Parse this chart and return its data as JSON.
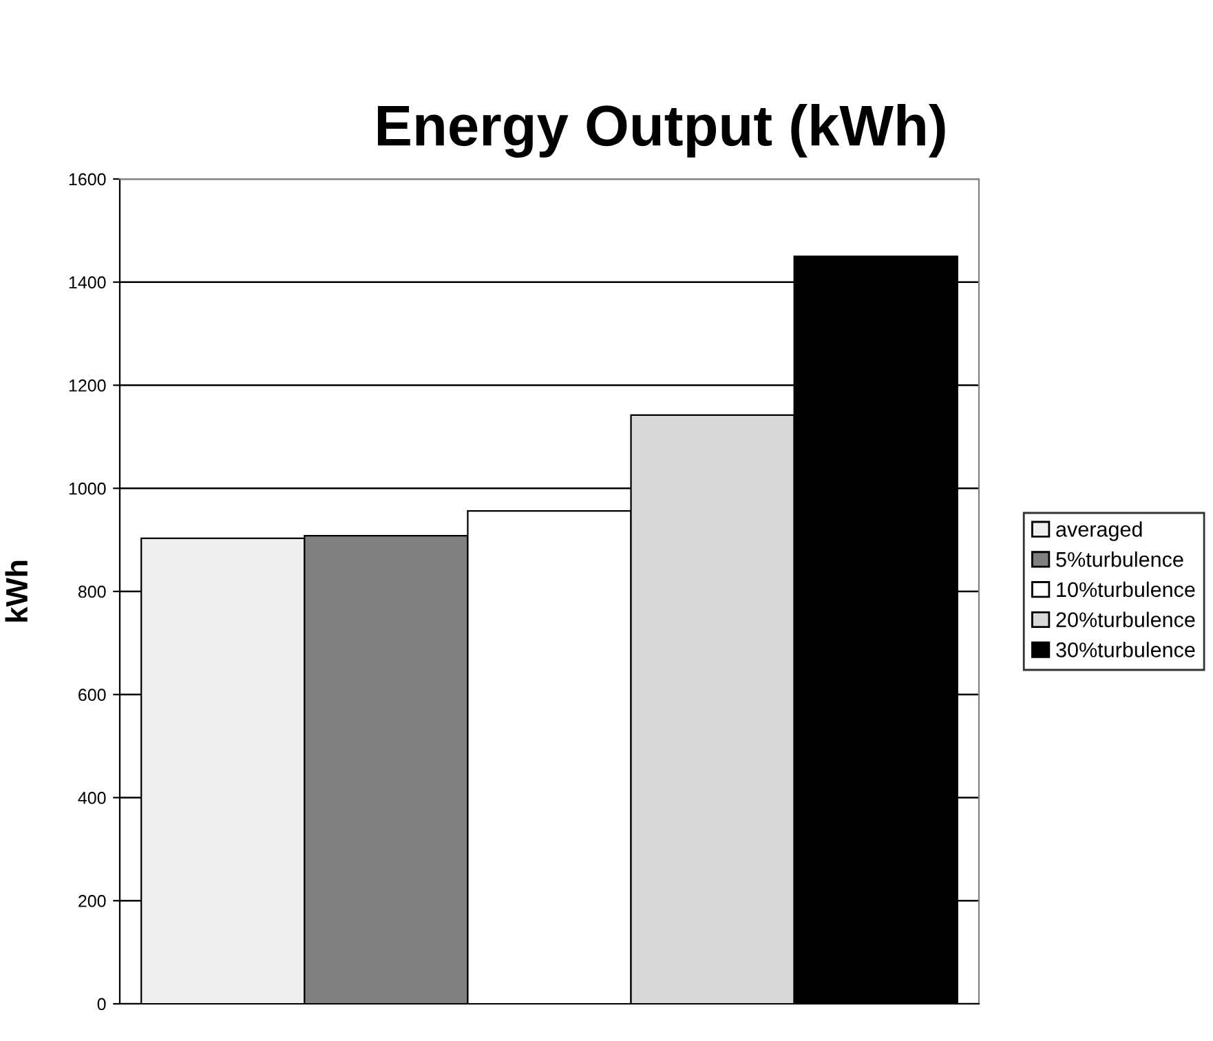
{
  "chart_data": {
    "type": "bar",
    "title": "Energy Output (kWh)",
    "ylabel": "kWh",
    "categories": [
      null
    ],
    "series": [
      {
        "name": "averaged",
        "color": "#eeeeee",
        "values": [
          903
        ]
      },
      {
        "name": "5%turbulence",
        "color": "#808080",
        "values": [
          908
        ]
      },
      {
        "name": "10%turbulence",
        "color": "#ffffff",
        "values": [
          956
        ]
      },
      {
        "name": "20%turbulence",
        "color": "#d9d9d9",
        "values": [
          1142
        ]
      },
      {
        "name": "30%turbulence",
        "color": "#000000",
        "values": [
          1450
        ]
      }
    ],
    "ylim": [
      0,
      1600
    ],
    "yticks": [
      0,
      200,
      400,
      600,
      800,
      1000,
      1200,
      1400,
      1600
    ],
    "grid": "y",
    "legend": "right"
  }
}
